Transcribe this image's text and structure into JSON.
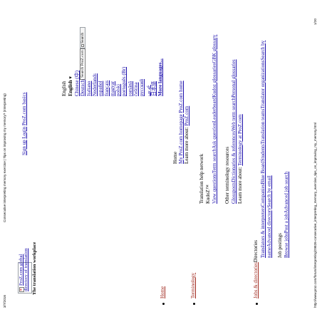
{
  "header": {
    "date": "3/7/2016",
    "page_title": "Consecutive interpreting memory exercise | Tips on improving my memory? (Interpreting)"
  },
  "footer": {
    "url": "http://www.proz.com/forum/interpreting/29826-consecutive_interpreting_memory_exercise_tips_on_improving_my_memory.html",
    "page_number": "1/20"
  },
  "logo": {
    "alt_line1": "ProZ.com global",
    "alt_line2": "directory of translation",
    "tagline": "The translation workplace"
  },
  "signup": {
    "sign_up": "Sign up",
    "login": "Login",
    "proz_basics": "ProZ.com basics"
  },
  "languages": {
    "current_label": "English",
    "current_selected": "English",
    "items": [
      "Chinese (中)",
      "Deutsch",
      "Italiano",
      "Nederlands",
      "español",
      "français",
      "magyar",
      "polski",
      "português (Br)",
      "română",
      "čeština",
      "русский",
      "عربي",
      "日本語"
    ],
    "more": "More languages..."
  },
  "search": {
    "value": "Search ProZ.com",
    "button": "Search"
  },
  "home_menu": {
    "link": "Home",
    "title": "Home",
    "item1": "My ProZ.com homepage",
    "item2": "ProZ.com home",
    "learn_prefix": "Learn more about:",
    "learn_link": "ProZ.com"
  },
  "terminology": {
    "link": "Terminology",
    "heading1": "Translation help network",
    "kudoz": "KudoZ™",
    "links1": [
      "View questions",
      "Term search",
      "Ask question",
      "Leaderboard",
      "Kudoz glossaries",
      "GBK glossary"
    ],
    "heading2": "Other terminology resources",
    "links2": [
      "Glossposts",
      "Dictionaries & references",
      "Web term search",
      "Personal glossaries"
    ],
    "learn_prefix": "Learn more about:",
    "learn_link": "Terminology at ProZ.com"
  },
  "jobs": {
    "link": "Jobs & directories",
    "directories_label": "Directories",
    "dir_links_line1": [
      "Translators & interpreters",
      "Companies",
      "Blue Board",
      "Students",
      "Translation teams",
      "Translator organizations",
      "Search by"
    ],
    "dir_links_line2": [
      "name",
      "Advanced directory",
      "Search by email"
    ],
    "postings_label": "Job postings",
    "posting_links": [
      "Browse jobs",
      "Post a job",
      "Advanced job search"
    ]
  }
}
